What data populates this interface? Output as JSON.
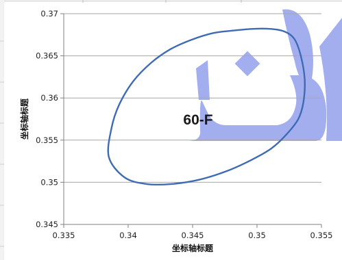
{
  "chart_data": {
    "type": "scatter",
    "title": "",
    "xlabel": "坐标轴标题",
    "ylabel": "坐标轴标题",
    "xlim": [
      0.335,
      0.355
    ],
    "ylim": [
      0.345,
      0.37
    ],
    "x_ticks": [
      "0.335",
      "0.34",
      "0.345",
      "0.35",
      "0.355"
    ],
    "y_ticks": [
      "0.345",
      "0.35",
      "0.355",
      "0.36",
      "0.365",
      "0.37"
    ],
    "grid": true,
    "legend": "none",
    "annotation": "60-F",
    "series": [
      {
        "color": "#3e6bb3",
        "x": [
          0.3385,
          0.3387,
          0.3393,
          0.3404,
          0.3418,
          0.3433,
          0.3449,
          0.3466,
          0.3482,
          0.3497,
          0.351,
          0.3521,
          0.3529,
          0.3534,
          0.3537,
          0.3536,
          0.3532,
          0.3523,
          0.3511,
          0.3495,
          0.3476,
          0.3455,
          0.3434,
          0.3414,
          0.3397,
          0.3385
        ],
        "y": [
          0.353,
          0.3564,
          0.3592,
          0.362,
          0.3642,
          0.3658,
          0.3669,
          0.3677,
          0.368,
          0.3682,
          0.3682,
          0.3679,
          0.367,
          0.365,
          0.3622,
          0.3595,
          0.3575,
          0.3557,
          0.354,
          0.3526,
          0.3513,
          0.3503,
          0.3498,
          0.3498,
          0.3506,
          0.353
        ]
      }
    ]
  },
  "colors": {
    "series_line": "#3e6bb3",
    "watermark": "#a3aeee",
    "gridline": "#a6a6a6",
    "axis": "#808080"
  }
}
